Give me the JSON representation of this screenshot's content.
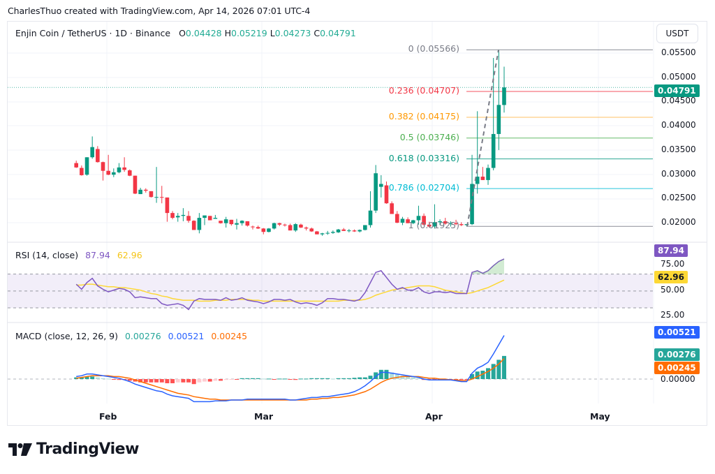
{
  "credit": "CharlesThuo created with TradingView.com, Apr 14, 2026 07:01 UTC-4",
  "header": {
    "symbol": "Enjin Coin / TetherUS · 1D · Binance",
    "open_label": "O",
    "open": "0.04428",
    "high_label": "H",
    "high": "0.05219",
    "low_label": "L",
    "low": "0.04273",
    "close_label": "C",
    "close": "0.04791",
    "currency_button": "USDT"
  },
  "price_axis": {
    "ticks": [
      "0.05500",
      "0.05000",
      "0.04500",
      "0.04000",
      "0.03500",
      "0.03000",
      "0.02500",
      "0.02000"
    ],
    "last_price": "0.04791",
    "last_price_color": "#089981"
  },
  "fibonacci": [
    {
      "label": "0 (0.05566)",
      "level": 0,
      "price": 0.05566,
      "color": "#787b86"
    },
    {
      "label": "0.236 (0.04707)",
      "level": 0.236,
      "price": 0.04707,
      "color": "#f23645"
    },
    {
      "label": "0.382 (0.04175)",
      "level": 0.382,
      "price": 0.04175,
      "color": "#ff9800"
    },
    {
      "label": "0.5 (0.03746)",
      "level": 0.5,
      "price": 0.03746,
      "color": "#4caf50"
    },
    {
      "label": "0.618 (0.03316)",
      "level": 0.618,
      "price": 0.03316,
      "color": "#089981"
    },
    {
      "label": "0.786 (0.02704)",
      "level": 0.786,
      "price": 0.02704,
      "color": "#00bcd4"
    },
    {
      "label": "1 (0.01925)",
      "level": 1,
      "price": 0.01925,
      "color": "#787b86"
    }
  ],
  "rsi": {
    "title": "RSI (14, close)",
    "value": "87.94",
    "ma_value": "62.96",
    "value_color": "#7e57c2",
    "ma_color": "#fdd835",
    "ticks": [
      "75.00",
      "50.00",
      "25.00"
    ]
  },
  "macd": {
    "title": "MACD (close, 12, 26, 9)",
    "histogram": "0.00276",
    "macd": "0.00521",
    "signal": "0.00245",
    "histogram_color": "#26a69a",
    "macd_color": "#2962ff",
    "signal_color": "#ff6d00",
    "zero_tick": "0.00000"
  },
  "time_axis": [
    "Feb",
    "Mar",
    "Apr",
    "May"
  ],
  "brand": "TradingView",
  "chart_data": {
    "type": "candlestick",
    "title": "Enjin Coin / TetherUS · 1D · Binance",
    "xlabel": "",
    "ylabel": "USDT",
    "x_ticks": [
      "Feb",
      "Mar",
      "Apr",
      "May"
    ],
    "ylim": [
      0.0175,
      0.0575
    ],
    "last": {
      "open": 0.04428,
      "high": 0.05219,
      "low": 0.04273,
      "close": 0.04791
    },
    "candles": [
      [
        0.0323,
        0.0328,
        0.0313,
        0.0314
      ],
      [
        0.0313,
        0.0318,
        0.0297,
        0.0298
      ],
      [
        0.0299,
        0.0335,
        0.0297,
        0.0335
      ],
      [
        0.0335,
        0.0378,
        0.0332,
        0.0356
      ],
      [
        0.0352,
        0.0358,
        0.0324,
        0.0325
      ],
      [
        0.0325,
        0.0326,
        0.0287,
        0.0307
      ],
      [
        0.0307,
        0.034,
        0.0298,
        0.0299
      ],
      [
        0.0299,
        0.0312,
        0.0294,
        0.0304
      ],
      [
        0.0304,
        0.0323,
        0.0302,
        0.0314
      ],
      [
        0.0314,
        0.0335,
        0.0305,
        0.0309
      ],
      [
        0.0308,
        0.031,
        0.0296,
        0.0297
      ],
      [
        0.0297,
        0.0297,
        0.0259,
        0.026
      ],
      [
        0.0259,
        0.0272,
        0.0259,
        0.0268
      ],
      [
        0.0268,
        0.0271,
        0.0262,
        0.0266
      ],
      [
        0.0265,
        0.0265,
        0.0252,
        0.0253
      ],
      [
        0.0253,
        0.0315,
        0.0241,
        0.0253
      ],
      [
        0.0253,
        0.0276,
        0.024,
        0.0252
      ],
      [
        0.0252,
        0.0252,
        0.0202,
        0.022
      ],
      [
        0.022,
        0.0224,
        0.0207,
        0.021
      ],
      [
        0.0211,
        0.022,
        0.0202,
        0.0214
      ],
      [
        0.0214,
        0.023,
        0.0203,
        0.0216
      ],
      [
        0.0214,
        0.0224,
        0.02,
        0.0204
      ],
      [
        0.0204,
        0.0205,
        0.0185,
        0.0185
      ],
      [
        0.0185,
        0.022,
        0.0178,
        0.021
      ],
      [
        0.021,
        0.0214,
        0.0195,
        0.0215
      ],
      [
        0.0214,
        0.0214,
        0.0205,
        0.0205
      ],
      [
        0.0208,
        0.0216,
        0.0208,
        0.021
      ],
      [
        0.0204,
        0.0204,
        0.0198,
        0.0199
      ],
      [
        0.0199,
        0.0212,
        0.019,
        0.0207
      ],
      [
        0.0206,
        0.0206,
        0.0194,
        0.0197
      ],
      [
        0.0196,
        0.0208,
        0.0186,
        0.0199
      ],
      [
        0.0199,
        0.0205,
        0.0194,
        0.0204
      ],
      [
        0.0203,
        0.0203,
        0.0192,
        0.0194
      ],
      [
        0.0192,
        0.0194,
        0.0186,
        0.0191
      ],
      [
        0.0191,
        0.0194,
        0.0187,
        0.0188
      ],
      [
        0.0188,
        0.0189,
        0.0176,
        0.0181
      ],
      [
        0.0181,
        0.0189,
        0.018,
        0.0188
      ],
      [
        0.0188,
        0.02,
        0.0186,
        0.0199
      ],
      [
        0.0199,
        0.02,
        0.0193,
        0.0196
      ],
      [
        0.0196,
        0.0198,
        0.0192,
        0.0195
      ],
      [
        0.0195,
        0.0198,
        0.0184,
        0.0184
      ],
      [
        0.0184,
        0.0199,
        0.0181,
        0.0197
      ],
      [
        0.0196,
        0.0198,
        0.0189,
        0.019
      ],
      [
        0.019,
        0.0192,
        0.0184,
        0.0188
      ],
      [
        0.0188,
        0.019,
        0.0181,
        0.0182
      ],
      [
        0.0182,
        0.0183,
        0.0176,
        0.0176
      ],
      [
        0.0176,
        0.0179,
        0.0173,
        0.0178
      ],
      [
        0.0178,
        0.0183,
        0.0175,
        0.0179
      ],
      [
        0.0179,
        0.0184,
        0.0177,
        0.0181
      ],
      [
        0.018,
        0.0187,
        0.0179,
        0.0186
      ],
      [
        0.0186,
        0.0189,
        0.0183,
        0.0183
      ],
      [
        0.0183,
        0.0187,
        0.018,
        0.0184
      ],
      [
        0.0184,
        0.0186,
        0.0181,
        0.0182
      ],
      [
        0.0182,
        0.0186,
        0.018,
        0.0185
      ],
      [
        0.0185,
        0.0195,
        0.0184,
        0.0195
      ],
      [
        0.0195,
        0.0265,
        0.019,
        0.0225
      ],
      [
        0.0225,
        0.0319,
        0.022,
        0.0302
      ],
      [
        0.0274,
        0.0298,
        0.0252,
        0.028
      ],
      [
        0.0277,
        0.0285,
        0.0239,
        0.024
      ],
      [
        0.024,
        0.0244,
        0.0219,
        0.0218
      ],
      [
        0.0218,
        0.0224,
        0.0199,
        0.02
      ],
      [
        0.02,
        0.0212,
        0.0195,
        0.0208
      ],
      [
        0.0207,
        0.0211,
        0.0199,
        0.0199
      ],
      [
        0.0199,
        0.0206,
        0.0197,
        0.0205
      ],
      [
        0.0205,
        0.0235,
        0.0196,
        0.0214
      ],
      [
        0.0214,
        0.0219,
        0.0194,
        0.0196
      ],
      [
        0.0196,
        0.0202,
        0.019,
        0.0192
      ],
      [
        0.0192,
        0.0238,
        0.0188,
        0.0201
      ],
      [
        0.0201,
        0.0207,
        0.0195,
        0.0203
      ],
      [
        0.0203,
        0.021,
        0.0196,
        0.0198
      ],
      [
        0.0198,
        0.0203,
        0.0192,
        0.0199
      ],
      [
        0.0199,
        0.0206,
        0.0195,
        0.0197
      ],
      [
        0.0197,
        0.0201,
        0.0193,
        0.0195
      ],
      [
        0.0195,
        0.0197,
        0.01925,
        0.0197
      ],
      [
        0.0197,
        0.034,
        0.0195,
        0.028
      ],
      [
        0.028,
        0.043,
        0.026,
        0.0295
      ],
      [
        0.0295,
        0.0315,
        0.0288,
        0.0288
      ],
      [
        0.0288,
        0.032,
        0.0278,
        0.0313
      ],
      [
        0.0313,
        0.054,
        0.0308,
        0.0383
      ],
      [
        0.0383,
        0.05566,
        0.035,
        0.0443
      ],
      [
        0.04428,
        0.05219,
        0.04273,
        0.04791
      ]
    ],
    "fib_levels": [
      {
        "level": 0,
        "price": 0.05566
      },
      {
        "level": 0.236,
        "price": 0.04707
      },
      {
        "level": 0.382,
        "price": 0.04175
      },
      {
        "level": 0.5,
        "price": 0.03746
      },
      {
        "level": 0.618,
        "price": 0.03316
      },
      {
        "level": 0.786,
        "price": 0.02704
      },
      {
        "level": 1,
        "price": 0.01925
      }
    ],
    "rsi": {
      "period": 14,
      "last": 87.94,
      "ma_last": 62.96,
      "bands": [
        70,
        50,
        30
      ],
      "ylim": [
        20,
        92
      ]
    },
    "macd": {
      "fast": 12,
      "slow": 26,
      "signal": 9,
      "histogram_last": 0.00276,
      "macd_last": 0.00521,
      "signal_last": 0.00245
    }
  }
}
